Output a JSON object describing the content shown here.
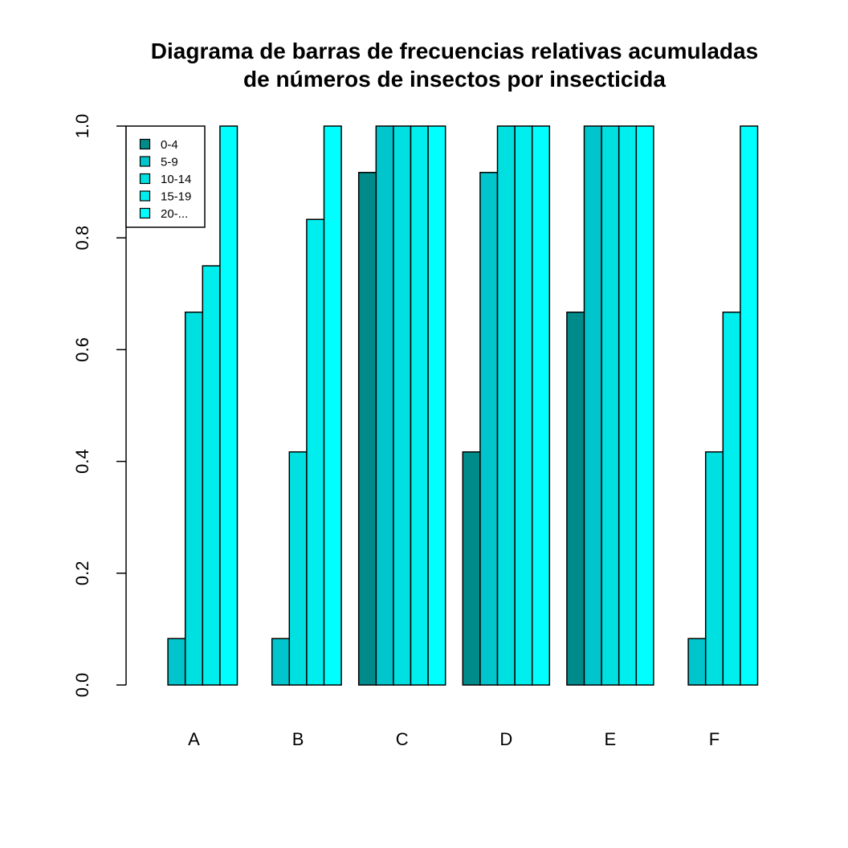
{
  "chart_data": {
    "type": "bar",
    "title_lines": [
      "Diagrama de barras de frecuencias relativas acumuladas",
      "de números de insectos por insecticida"
    ],
    "xlabel": "",
    "ylabel": "",
    "ylim": [
      0,
      1
    ],
    "yticks": [
      "0.0",
      "0.2",
      "0.4",
      "0.6",
      "0.8",
      "1.0"
    ],
    "grid": false,
    "legend_position": "top-left",
    "categories": [
      "A",
      "B",
      "C",
      "D",
      "E",
      "F"
    ],
    "series": [
      {
        "name": "0-4",
        "color": "#008B8B",
        "values": [
          0.0,
          0.0,
          0.917,
          0.417,
          0.667,
          0.0
        ]
      },
      {
        "name": "5-9",
        "color": "#00C5CD",
        "values": [
          0.083,
          0.083,
          1.0,
          0.917,
          1.0,
          0.083
        ]
      },
      {
        "name": "10-14",
        "color": "#00E0E0",
        "values": [
          0.667,
          0.417,
          1.0,
          1.0,
          1.0,
          0.417
        ]
      },
      {
        "name": "15-19",
        "color": "#00EEEE",
        "values": [
          0.75,
          0.833,
          1.0,
          1.0,
          1.0,
          0.667
        ]
      },
      {
        "name": "20-...",
        "color": "#00FFFF",
        "values": [
          1.0,
          1.0,
          1.0,
          1.0,
          1.0,
          1.0
        ]
      }
    ]
  }
}
